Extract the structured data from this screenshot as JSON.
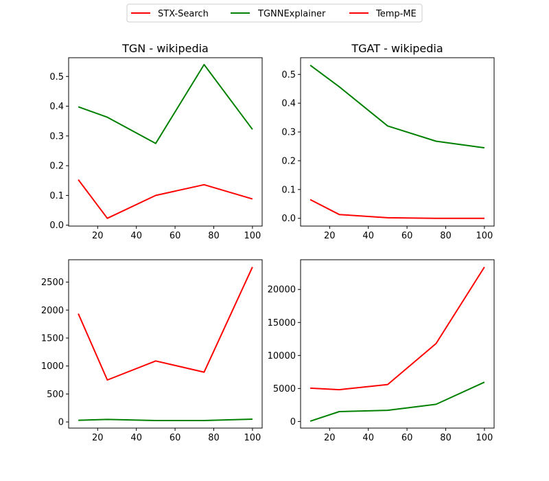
{
  "legend": {
    "entries": [
      {
        "label": "STX-Search",
        "color": "#ff0000"
      },
      {
        "label": "TGNNExplainer",
        "color": "#008000"
      },
      {
        "label": "Temp-ME",
        "color": "#ff0000"
      }
    ]
  },
  "chart_data": [
    {
      "type": "line",
      "title": "TGN - wikipedia",
      "x": [
        10,
        25,
        50,
        75,
        100
      ],
      "xticks": [
        20,
        40,
        60,
        80,
        100
      ],
      "xlim": [
        5,
        105
      ],
      "ylim": [
        -0.003,
        0.563
      ],
      "yticks": [
        0.0,
        0.1,
        0.2,
        0.3,
        0.4,
        0.5
      ],
      "ytick_labels": [
        "0.0",
        "0.1",
        "0.2",
        "0.3",
        "0.4",
        "0.5"
      ],
      "series": [
        {
          "name": "TGNNExplainer",
          "color": "#008000",
          "values": [
            0.398,
            0.363,
            0.275,
            0.54,
            0.322
          ]
        },
        {
          "name": "Temp-ME",
          "color": "#ff0000",
          "values": [
            0.153,
            0.023,
            0.1,
            0.136,
            0.088
          ]
        }
      ]
    },
    {
      "type": "line",
      "title": "TGAT - wikipedia",
      "x": [
        10,
        25,
        50,
        75,
        100
      ],
      "xticks": [
        20,
        40,
        60,
        80,
        100
      ],
      "xlim": [
        5,
        105
      ],
      "ylim": [
        -0.027,
        0.558
      ],
      "yticks": [
        0.0,
        0.1,
        0.2,
        0.3,
        0.4,
        0.5
      ],
      "ytick_labels": [
        "0.0",
        "0.1",
        "0.2",
        "0.3",
        "0.4",
        "0.5"
      ],
      "series": [
        {
          "name": "TGNNExplainer",
          "color": "#008000",
          "values": [
            0.532,
            0.457,
            0.321,
            0.268,
            0.245
          ]
        },
        {
          "name": "Temp-ME",
          "color": "#ff0000",
          "values": [
            0.065,
            0.013,
            0.002,
            0.0,
            0.0
          ]
        }
      ]
    },
    {
      "type": "line",
      "title": "",
      "x": [
        10,
        25,
        50,
        75,
        100
      ],
      "xticks": [
        20,
        40,
        60,
        80,
        100
      ],
      "xlim": [
        5,
        105
      ],
      "ylim": [
        -110,
        2900
      ],
      "yticks": [
        0,
        500,
        1000,
        1500,
        2000,
        2500
      ],
      "ytick_labels": [
        "0",
        "500",
        "1000",
        "1500",
        "2000",
        "2500"
      ],
      "series": [
        {
          "name": "STX-Search",
          "color": "#ff0000",
          "values": [
            1935,
            750,
            1090,
            890,
            2770
          ]
        },
        {
          "name": "TGNNExplainer",
          "color": "#008000",
          "values": [
            30,
            45,
            25,
            25,
            50
          ]
        }
      ]
    },
    {
      "type": "line",
      "title": "",
      "x": [
        10,
        25,
        50,
        75,
        100
      ],
      "xticks": [
        20,
        40,
        60,
        80,
        100
      ],
      "xlim": [
        5,
        105
      ],
      "ylim": [
        -1000,
        24500
      ],
      "yticks": [
        0,
        5000,
        10000,
        15000,
        20000
      ],
      "ytick_labels": [
        "0",
        "5000",
        "10000",
        "15000",
        "20000"
      ],
      "series": [
        {
          "name": "STX-Search",
          "color": "#ff0000",
          "values": [
            5050,
            4820,
            5600,
            11800,
            23400
          ]
        },
        {
          "name": "TGNNExplainer",
          "color": "#008000",
          "values": [
            50,
            1500,
            1700,
            2600,
            5950
          ]
        }
      ]
    }
  ]
}
